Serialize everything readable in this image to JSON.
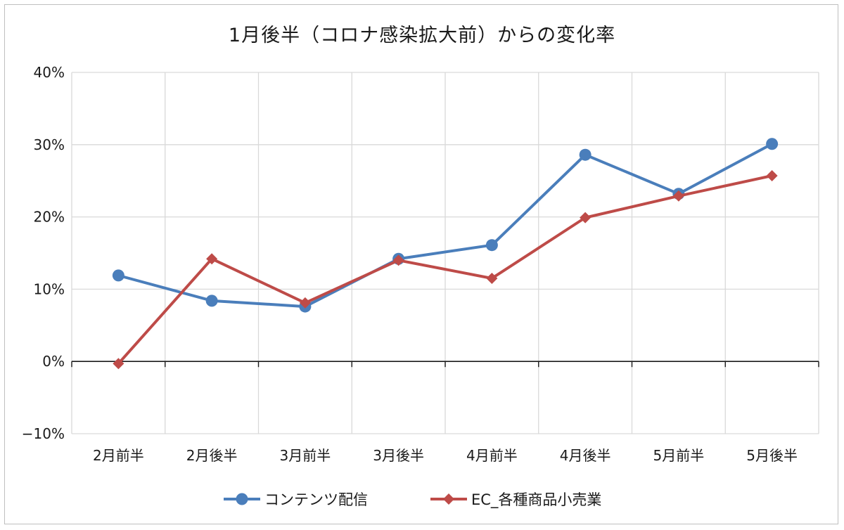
{
  "chart_data": {
    "type": "line",
    "title": "1月後半（コロナ感染拡大前）からの変化率",
    "xlabel": "",
    "ylabel": "",
    "categories": [
      "2月前半",
      "2月後半",
      "3月前半",
      "3月後半",
      "4月前半",
      "4月後半",
      "5月前半",
      "5月後半"
    ],
    "ylim": [
      -0.1,
      0.4
    ],
    "yticks": [
      -0.1,
      0,
      0.1,
      0.2,
      0.3,
      0.4
    ],
    "ytick_labels": [
      "−10%",
      "0%",
      "10%",
      "20%",
      "30%",
      "40%"
    ],
    "grid": true,
    "legend_position": "bottom",
    "series": [
      {
        "name": "コンテンツ配信",
        "color": "#4a7ebb",
        "marker": "circle",
        "values": [
          0.119,
          0.084,
          0.076,
          0.142,
          0.161,
          0.286,
          0.232,
          0.301
        ]
      },
      {
        "name": "EC_各種商品小売業",
        "color": "#be4b48",
        "marker": "diamond",
        "values": [
          -0.003,
          0.142,
          0.081,
          0.14,
          0.115,
          0.199,
          0.229,
          0.257
        ]
      }
    ]
  }
}
